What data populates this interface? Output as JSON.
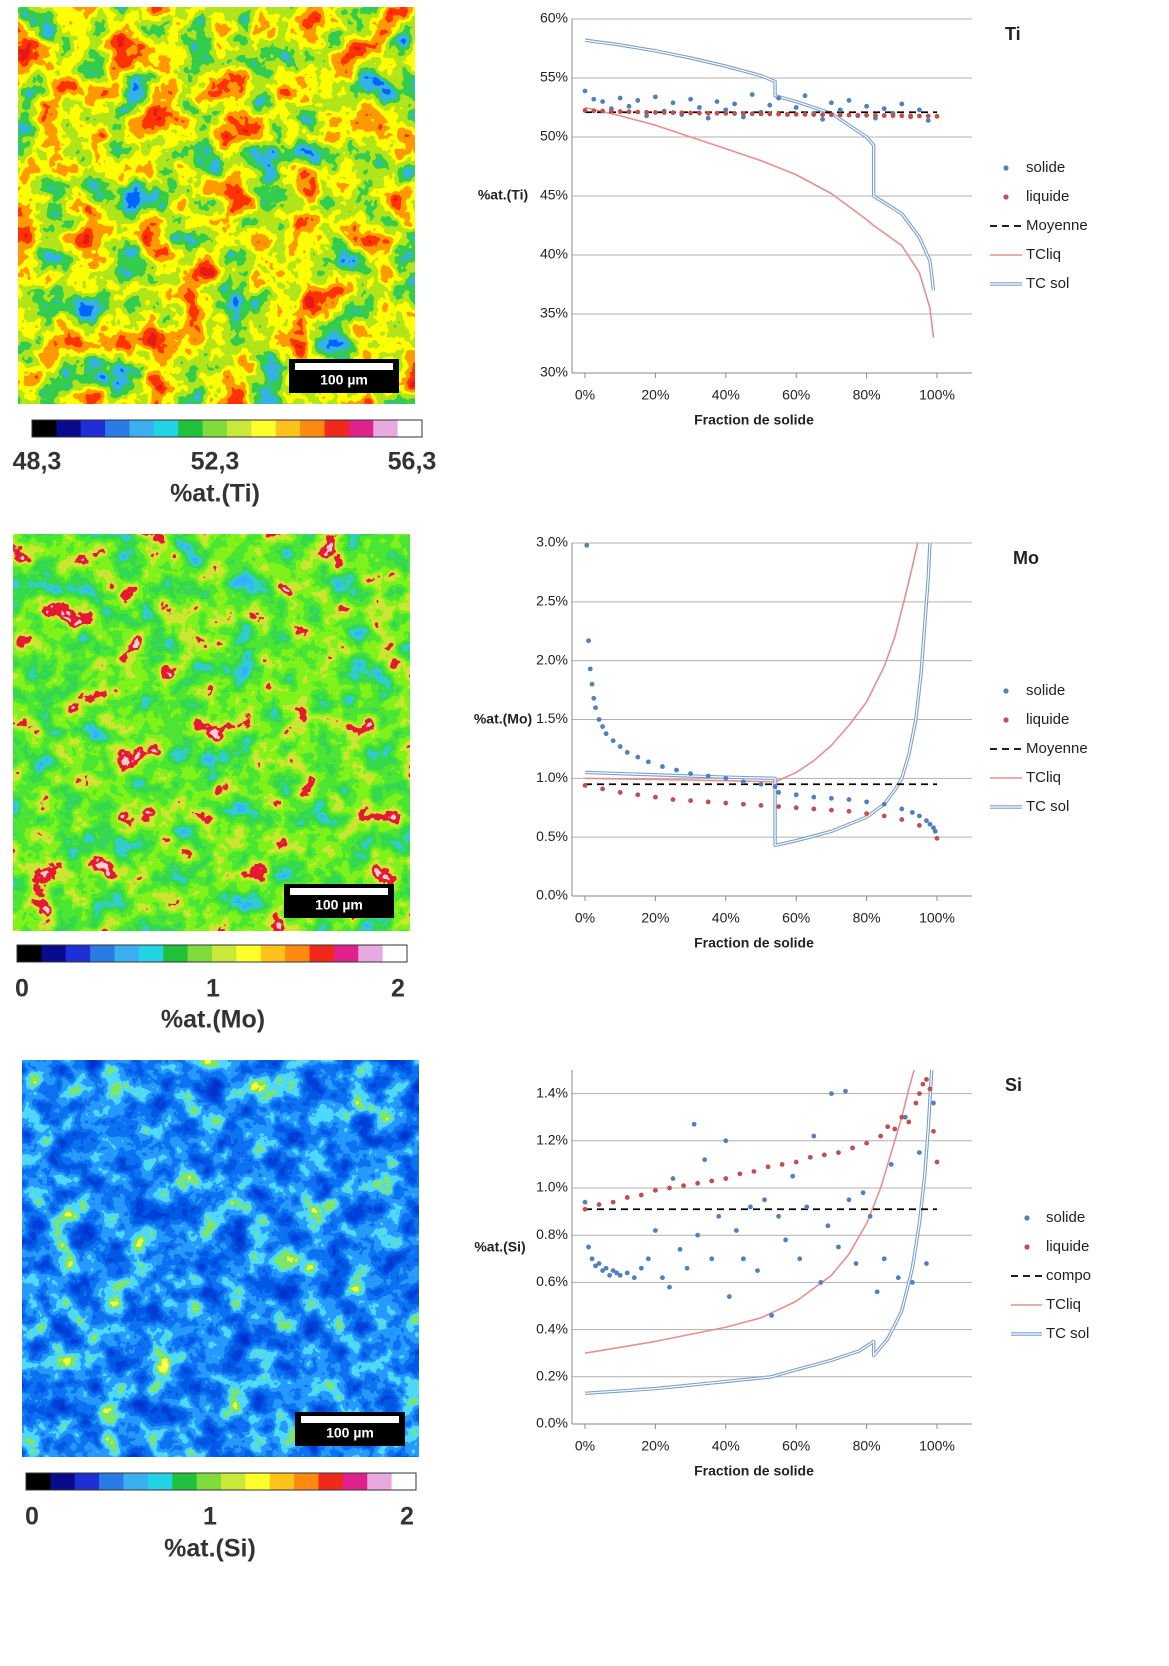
{
  "maps": [
    {
      "colorbar_labels": [
        "48,3",
        "52,3",
        "56,3"
      ],
      "label": "%at.(Ti)",
      "scale_bar": "100 µm"
    },
    {
      "colorbar_labels": [
        "0",
        "1",
        "2"
      ],
      "label": "%at.(Mo)",
      "scale_bar": "100 µm"
    },
    {
      "colorbar_labels": [
        "0",
        "1",
        "2"
      ],
      "label": "%at.(Si)",
      "scale_bar": "100 µm"
    }
  ],
  "chart_data": [
    {
      "type": "line",
      "title": "Ti",
      "x_label": "Fraction de solide",
      "y_label": "%at.(Ti)",
      "xlim": [
        0,
        100
      ],
      "xticks": [
        {
          "value": 0,
          "label": "0%"
        },
        {
          "value": 20,
          "label": "20%"
        },
        {
          "value": 40,
          "label": "40%"
        },
        {
          "value": 60,
          "label": "60%"
        },
        {
          "value": 80,
          "label": "80%"
        },
        {
          "value": 100,
          "label": "100%"
        }
      ],
      "ylim": [
        30,
        60
      ],
      "yticks": [
        {
          "value": 30,
          "label": "30%"
        },
        {
          "value": 35,
          "label": "35%"
        },
        {
          "value": 40,
          "label": "40%"
        },
        {
          "value": 45,
          "label": "45%"
        },
        {
          "value": 50,
          "label": "50%"
        },
        {
          "value": 55,
          "label": "55%"
        },
        {
          "value": 60,
          "label": "60%"
        }
      ],
      "grid": true,
      "legend": "right",
      "series": [
        {
          "name": "solide",
          "style": "dots",
          "color": "#4f81bd",
          "x": [
            0,
            2.5,
            5,
            7.5,
            10,
            12.5,
            15,
            17.5,
            20,
            22.5,
            25,
            27.5,
            30,
            32.5,
            35,
            37.5,
            40,
            42.5,
            45,
            47.5,
            50,
            52.5,
            55,
            57.5,
            60,
            62.5,
            65,
            67.5,
            70,
            72.5,
            75,
            77.5,
            80,
            82.5,
            85,
            87.5,
            90,
            92.5,
            95,
            97.5
          ],
          "values": [
            53.9,
            53.2,
            53.0,
            52.4,
            53.3,
            52.6,
            53.1,
            51.8,
            53.4,
            52.2,
            52.9,
            51.9,
            53.2,
            52.5,
            51.6,
            53.0,
            52.3,
            52.8,
            51.7,
            53.6,
            52.1,
            52.7,
            53.3,
            51.9,
            52.5,
            53.5,
            52.0,
            51.5,
            52.9,
            52.3,
            53.1,
            51.8,
            52.6,
            51.6,
            52.4,
            52.0,
            52.8,
            51.7,
            52.3,
            51.4
          ]
        },
        {
          "name": "liquide",
          "style": "dots",
          "color": "#c0504d",
          "x": [
            0,
            2.5,
            5,
            7.5,
            10,
            12.5,
            15,
            17.5,
            20,
            22.5,
            25,
            27.5,
            30,
            32.5,
            35,
            37.5,
            40,
            42.5,
            45,
            47.5,
            50,
            52.5,
            55,
            57.5,
            60,
            62.5,
            65,
            67.5,
            70,
            72.5,
            75,
            77.5,
            80,
            82.5,
            85,
            87.5,
            90,
            92.5,
            95,
            97.5,
            100
          ],
          "values": [
            52.25,
            52.22,
            52.2,
            52.18,
            52.16,
            52.14,
            52.12,
            52.1,
            52.08,
            52.07,
            52.06,
            52.05,
            52.04,
            52.03,
            52.02,
            52.01,
            52.0,
            51.99,
            51.98,
            51.97,
            51.96,
            51.95,
            51.94,
            51.93,
            51.92,
            51.91,
            51.9,
            51.89,
            51.88,
            51.87,
            51.86,
            51.85,
            51.84,
            51.83,
            51.82,
            51.81,
            51.8,
            51.79,
            51.78,
            51.77,
            51.75
          ]
        },
        {
          "name": "Moyenne",
          "style": "dashed",
          "color": "#000000",
          "x": [
            0,
            100
          ],
          "values": [
            52.1,
            52.1
          ]
        },
        {
          "name": "TCliq",
          "style": "line",
          "color": "#e6908e",
          "x": [
            0,
            10,
            20,
            30,
            40,
            50,
            60,
            70,
            80,
            82,
            90,
            95,
            98,
            99
          ],
          "values": [
            52.5,
            51.8,
            51.0,
            50.0,
            49.0,
            48.0,
            46.8,
            45.2,
            43.0,
            42.5,
            40.8,
            38.5,
            35.5,
            33.0
          ]
        },
        {
          "name": "TC sol",
          "style": "double",
          "color": "#7ba0cd",
          "x": [
            0,
            10,
            20,
            30,
            40,
            50,
            54,
            54,
            60,
            70,
            80,
            82,
            82,
            90,
            95,
            98,
            99
          ],
          "values": [
            58.2,
            57.8,
            57.3,
            56.7,
            56.0,
            55.2,
            54.7,
            53.5,
            53.0,
            52.0,
            50.0,
            49.3,
            45.0,
            43.5,
            41.5,
            39.5,
            37.0
          ]
        }
      ]
    },
    {
      "type": "line",
      "title": "Mo",
      "x_label": "Fraction de solide",
      "y_label": "%at.(Mo)",
      "xlim": [
        0,
        100
      ],
      "xticks": [
        {
          "value": 0,
          "label": "0%"
        },
        {
          "value": 20,
          "label": "20%"
        },
        {
          "value": 40,
          "label": "40%"
        },
        {
          "value": 60,
          "label": "60%"
        },
        {
          "value": 80,
          "label": "80%"
        },
        {
          "value": 100,
          "label": "100%"
        }
      ],
      "ylim": [
        0,
        3
      ],
      "yticks": [
        {
          "value": 0,
          "label": "0.0%"
        },
        {
          "value": 0.5,
          "label": "0.5%"
        },
        {
          "value": 1,
          "label": "1.0%"
        },
        {
          "value": 1.5,
          "label": "1.5%"
        },
        {
          "value": 2,
          "label": "2.0%"
        },
        {
          "value": 2.5,
          "label": "2.5%"
        },
        {
          "value": 3,
          "label": "3.0%"
        }
      ],
      "grid": true,
      "legend": "right",
      "series": [
        {
          "name": "solide",
          "style": "dots",
          "color": "#4f81bd",
          "x": [
            0.5,
            1,
            1.5,
            2,
            2.5,
            3,
            4,
            5,
            6,
            8,
            10,
            12,
            15,
            18,
            22,
            26,
            30,
            35,
            40,
            45,
            50,
            54,
            55,
            60,
            65,
            70,
            75,
            80,
            85,
            90,
            93,
            95,
            97,
            98,
            99,
            99.5
          ],
          "values": [
            2.98,
            2.17,
            1.93,
            1.8,
            1.68,
            1.6,
            1.5,
            1.44,
            1.38,
            1.32,
            1.27,
            1.22,
            1.18,
            1.14,
            1.1,
            1.07,
            1.04,
            1.02,
            1.0,
            0.97,
            0.95,
            0.93,
            0.88,
            0.86,
            0.84,
            0.83,
            0.82,
            0.8,
            0.78,
            0.74,
            0.71,
            0.68,
            0.64,
            0.61,
            0.58,
            0.55
          ]
        },
        {
          "name": "liquide",
          "style": "dots",
          "color": "#c0504d",
          "x": [
            0,
            5,
            10,
            15,
            20,
            25,
            30,
            35,
            40,
            45,
            50,
            55,
            60,
            65,
            70,
            75,
            80,
            85,
            90,
            95,
            100
          ],
          "values": [
            0.94,
            0.91,
            0.88,
            0.86,
            0.84,
            0.82,
            0.81,
            0.8,
            0.79,
            0.78,
            0.77,
            0.76,
            0.75,
            0.74,
            0.73,
            0.72,
            0.7,
            0.68,
            0.65,
            0.6,
            0.49
          ]
        },
        {
          "name": "Moyenne",
          "style": "dashed",
          "color": "#000000",
          "x": [
            0,
            100
          ],
          "values": [
            0.95,
            0.95
          ]
        },
        {
          "name": "TCliq",
          "style": "line",
          "color": "#e6908e",
          "x": [
            0,
            20,
            40,
            54,
            60,
            65,
            70,
            75,
            80,
            85,
            88,
            91,
            93,
            94.5
          ],
          "values": [
            1.0,
            0.99,
            0.98,
            0.97,
            1.05,
            1.15,
            1.28,
            1.45,
            1.65,
            1.95,
            2.2,
            2.55,
            2.8,
            3.0
          ]
        },
        {
          "name": "TC sol",
          "style": "double",
          "color": "#7ba0cd",
          "x": [
            0,
            20,
            40,
            54,
            54,
            60,
            70,
            80,
            85,
            88,
            90,
            92,
            94,
            95.5,
            96.5,
            97.5,
            98
          ],
          "values": [
            1.05,
            1.03,
            1.01,
            1.0,
            0.43,
            0.47,
            0.55,
            0.67,
            0.78,
            0.9,
            1.0,
            1.2,
            1.5,
            1.9,
            2.3,
            2.7,
            3.0
          ]
        }
      ]
    },
    {
      "type": "line",
      "title": "Si",
      "x_label": "Fraction de solide",
      "y_label": "%at.(Si)",
      "xlim": [
        0,
        100
      ],
      "xticks": [
        {
          "value": 0,
          "label": "0%"
        },
        {
          "value": 20,
          "label": "20%"
        },
        {
          "value": 40,
          "label": "40%"
        },
        {
          "value": 60,
          "label": "60%"
        },
        {
          "value": 80,
          "label": "80%"
        },
        {
          "value": 100,
          "label": "100%"
        }
      ],
      "ylim": [
        0,
        1.5
      ],
      "yticks": [
        {
          "value": 0,
          "label": "0.0%"
        },
        {
          "value": 0.2,
          "label": "0.2%"
        },
        {
          "value": 0.4,
          "label": "0.4%"
        },
        {
          "value": 0.6,
          "label": "0.6%"
        },
        {
          "value": 0.8,
          "label": "0.8%"
        },
        {
          "value": 1,
          "label": "1.0%"
        },
        {
          "value": 1.2,
          "label": "1.2%"
        },
        {
          "value": 1.4,
          "label": "1.4%"
        }
      ],
      "grid": true,
      "legend": "right",
      "series": [
        {
          "name": "solide",
          "style": "dots",
          "color": "#4f81bd",
          "x": [
            0,
            1,
            2,
            3,
            4,
            5,
            6,
            7,
            8,
            9,
            10,
            12,
            14,
            16,
            18,
            20,
            22,
            24,
            25,
            27,
            29,
            31,
            32,
            34,
            36,
            38,
            40,
            41,
            43,
            45,
            47,
            49,
            51,
            53,
            55,
            57,
            59,
            61,
            63,
            65,
            67,
            69,
            70,
            72,
            74,
            75,
            77,
            79,
            81,
            83,
            85,
            87,
            89,
            91,
            93,
            95,
            97,
            99
          ],
          "values": [
            0.94,
            0.75,
            0.7,
            0.67,
            0.68,
            0.65,
            0.66,
            0.63,
            0.65,
            0.64,
            0.63,
            0.64,
            0.62,
            0.66,
            0.7,
            0.82,
            0.62,
            0.58,
            1.04,
            0.74,
            0.66,
            1.27,
            0.8,
            1.12,
            0.7,
            0.88,
            1.2,
            0.54,
            0.82,
            0.7,
            0.92,
            0.65,
            0.95,
            0.46,
            0.88,
            0.78,
            1.05,
            0.7,
            0.92,
            1.22,
            0.6,
            0.84,
            1.4,
            0.75,
            1.41,
            0.95,
            0.68,
            0.98,
            0.88,
            0.56,
            0.7,
            1.1,
            0.62,
            1.3,
            0.6,
            1.15,
            0.68,
            1.36
          ]
        },
        {
          "name": "liquide",
          "style": "dots",
          "color": "#c0504d",
          "x": [
            0,
            4,
            8,
            12,
            16,
            20,
            24,
            28,
            32,
            36,
            40,
            44,
            48,
            52,
            56,
            60,
            64,
            68,
            72,
            76,
            80,
            84,
            86,
            88,
            90,
            92,
            94,
            95,
            96,
            97,
            98,
            99,
            100
          ],
          "values": [
            0.91,
            0.93,
            0.94,
            0.96,
            0.97,
            0.99,
            1.0,
            1.01,
            1.02,
            1.03,
            1.04,
            1.06,
            1.07,
            1.09,
            1.1,
            1.11,
            1.13,
            1.14,
            1.15,
            1.17,
            1.19,
            1.22,
            1.26,
            1.25,
            1.3,
            1.28,
            1.36,
            1.4,
            1.44,
            1.46,
            1.42,
            1.24,
            1.11
          ]
        },
        {
          "name": "compo",
          "style": "dashed",
          "color": "#000000",
          "x": [
            0,
            100
          ],
          "values": [
            0.91,
            0.91
          ]
        },
        {
          "name": "TCliq",
          "style": "line",
          "color": "#e6908e",
          "x": [
            0,
            20,
            40,
            50,
            60,
            70,
            75,
            80,
            84,
            87,
            90,
            92,
            93.5
          ],
          "values": [
            0.3,
            0.35,
            0.41,
            0.45,
            0.52,
            0.63,
            0.72,
            0.85,
            1.0,
            1.15,
            1.3,
            1.42,
            1.5
          ]
        },
        {
          "name": "TC sol",
          "style": "double",
          "color": "#7ba0cd",
          "x": [
            0,
            20,
            40,
            53,
            60,
            70,
            78,
            82,
            82,
            86,
            90,
            93,
            95,
            96.5,
            97.5,
            98.5
          ],
          "values": [
            0.13,
            0.15,
            0.18,
            0.2,
            0.23,
            0.27,
            0.31,
            0.35,
            0.29,
            0.36,
            0.48,
            0.66,
            0.85,
            1.05,
            1.25,
            1.5
          ]
        }
      ]
    }
  ]
}
